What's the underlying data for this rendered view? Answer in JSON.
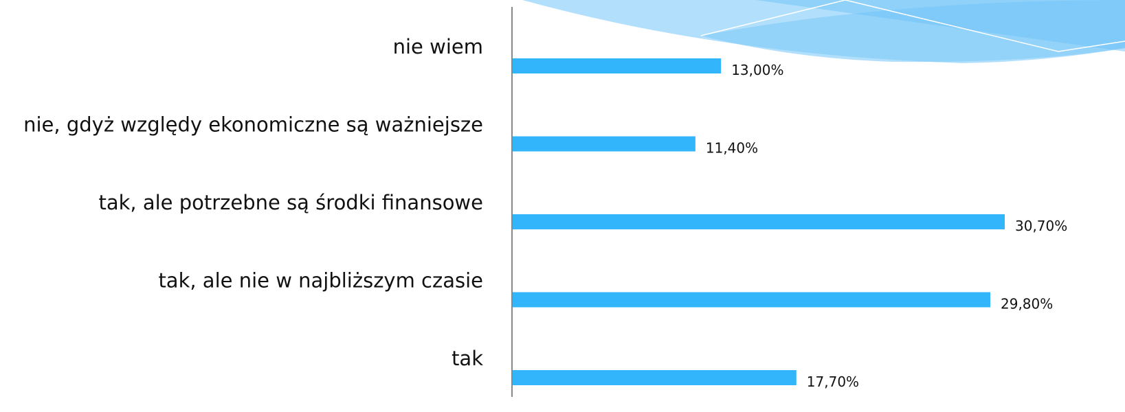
{
  "chart_data": {
    "type": "bar",
    "orientation": "horizontal",
    "categories": [
      "nie wiem",
      "nie, gdyż względy ekonomiczne są ważniejsze",
      "tak, ale potrzebne są środki finansowe",
      "tak, ale nie w najbliższym czasie",
      "tak"
    ],
    "values": [
      13.0,
      11.4,
      30.7,
      29.8,
      17.7
    ],
    "value_labels": [
      "13,00%",
      "11,40%",
      "30,70%",
      "29,80%",
      "17,70%"
    ],
    "color": "#33b5fb"
  }
}
